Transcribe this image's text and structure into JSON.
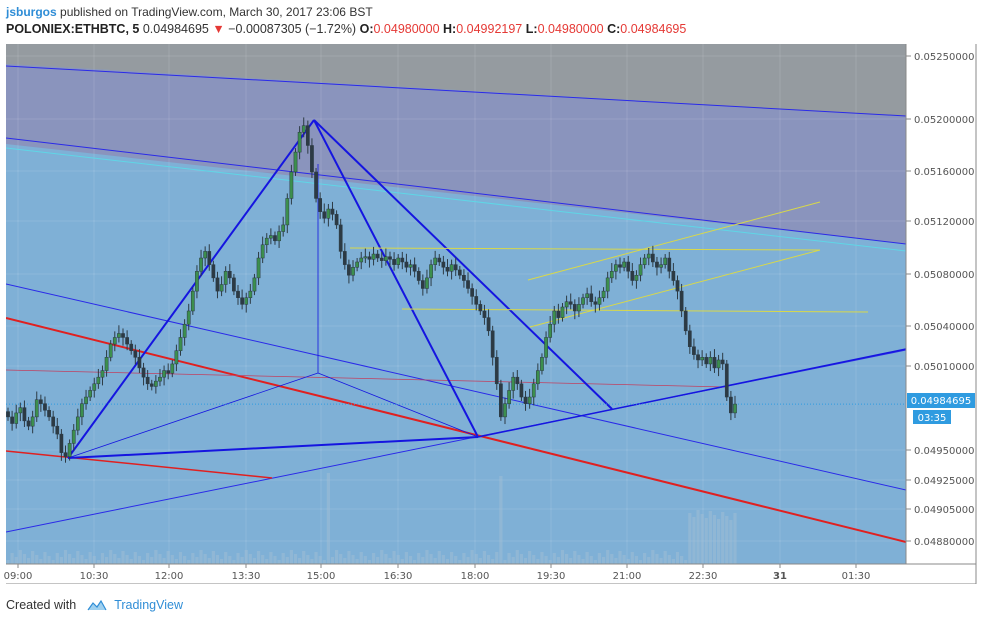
{
  "header": {
    "author": "jsburgos",
    "published_text": "published on TradingView.com, March 30, 2017 23:06 BST",
    "symbol": "POLONIEX:ETHBTC, 5",
    "last": "0.04984695",
    "change_icon": "triangle-down-icon",
    "change": "−0.00087305 (−1.72%)",
    "o_label": "O:",
    "o_value": "0.04980000",
    "h_label": "H:",
    "h_value": "0.04992197",
    "l_label": "L:",
    "l_value": "0.04980000",
    "c_label": "C:",
    "c_value": "0.04984695"
  },
  "footer": {
    "created_with": "Created with",
    "brand": "TradingView",
    "logo_icon": "tradingview-cloud-icon"
  },
  "colors": {
    "up": "#3c8f4e",
    "down": "#2c3a44",
    "pattern": "#1515e0",
    "regression": "#e02020",
    "channel": "#d8d84a",
    "price_tag": "#2f9be0"
  },
  "chart_data": {
    "type": "candlestick",
    "y_ticks": [
      "0.05250000",
      "0.05200000",
      "0.05160000",
      "0.05120000",
      "0.05080000",
      "0.05040000",
      "0.05010000",
      "0.04950000",
      "0.04925000",
      "0.04905000",
      "0.04880000"
    ],
    "x_ticks": [
      "09:00",
      "10:30",
      "12:00",
      "13:30",
      "15:00",
      "16:30",
      "18:00",
      "19:30",
      "21:00",
      "22:30",
      "31",
      "01:30"
    ],
    "price_tag": "0.04984695",
    "countdown": "03:35",
    "closes": [
      0.04975,
      0.0497,
      0.04978,
      0.04982,
      0.04972,
      0.04968,
      0.04975,
      0.04988,
      0.04985,
      0.0498,
      0.04975,
      0.04968,
      0.04962,
      0.04948,
      0.04945,
      0.04955,
      0.04965,
      0.04975,
      0.04985,
      0.0499,
      0.04995,
      0.05,
      0.05005,
      0.0501,
      0.0502,
      0.0503,
      0.05035,
      0.05038,
      0.05035,
      0.0503,
      0.05025,
      0.0502,
      0.05012,
      0.05005,
      0.05,
      0.04998,
      0.05002,
      0.05005,
      0.0501,
      0.05008,
      0.05015,
      0.05025,
      0.05035,
      0.05045,
      0.05055,
      0.0507,
      0.05085,
      0.05095,
      0.051,
      0.0509,
      0.0508,
      0.0507,
      0.05075,
      0.05085,
      0.0508,
      0.0507,
      0.05065,
      0.0506,
      0.05065,
      0.0507,
      0.0508,
      0.05095,
      0.05105,
      0.0511,
      0.05112,
      0.05108,
      0.05115,
      0.0512,
      0.0514,
      0.0516,
      0.05175,
      0.0519,
      0.05195,
      0.0518,
      0.0516,
      0.0514,
      0.0513,
      0.05125,
      0.05132,
      0.05128,
      0.0512,
      0.051,
      0.0509,
      0.05082,
      0.05088,
      0.05092,
      0.05095,
      0.05096,
      0.05094,
      0.05098,
      0.05095,
      0.05093,
      0.05096,
      0.05094,
      0.0509,
      0.05095,
      0.05092,
      0.05088,
      0.0509,
      0.05085,
      0.05078,
      0.05072,
      0.0508,
      0.0509,
      0.05095,
      0.05092,
      0.05088,
      0.05085,
      0.0509,
      0.05086,
      0.05082,
      0.05078,
      0.05072,
      0.05066,
      0.0506,
      0.05055,
      0.0505,
      0.0504,
      0.0502,
      0.05,
      0.04975,
      0.04985,
      0.04995,
      0.05005,
      0.05,
      0.0499,
      0.04985,
      0.0499,
      0.05,
      0.0501,
      0.0502,
      0.05035,
      0.05045,
      0.05055,
      0.0505,
      0.05058,
      0.05062,
      0.0506,
      0.05055,
      0.0506,
      0.05065,
      0.05068,
      0.05062,
      0.0506,
      0.05065,
      0.0507,
      0.0508,
      0.05085,
      0.0509,
      0.05088,
      0.05092,
      0.05085,
      0.05078,
      0.05082,
      0.0509,
      0.05095,
      0.05098,
      0.05092,
      0.05088,
      0.0509,
      0.05095,
      0.05085,
      0.05078,
      0.0507,
      0.05055,
      0.0504,
      0.05028,
      0.05022,
      0.05018,
      0.0502,
      0.05015,
      0.0502,
      0.05012,
      0.05018,
      0.05015,
      0.0499,
      0.04978,
      0.04984695
    ],
    "line_anchors": {
      "pattern_points": [
        [
          "08:00",
          "0.04948"
        ],
        [
          "11:00",
          "0.04995"
        ],
        [
          "14:50",
          "0.05200"
        ],
        [
          "18:00",
          "0.04955"
        ],
        [
          "20:50",
          "0.04977"
        ],
        [
          "23:44",
          "0.05010"
        ]
      ]
    }
  }
}
